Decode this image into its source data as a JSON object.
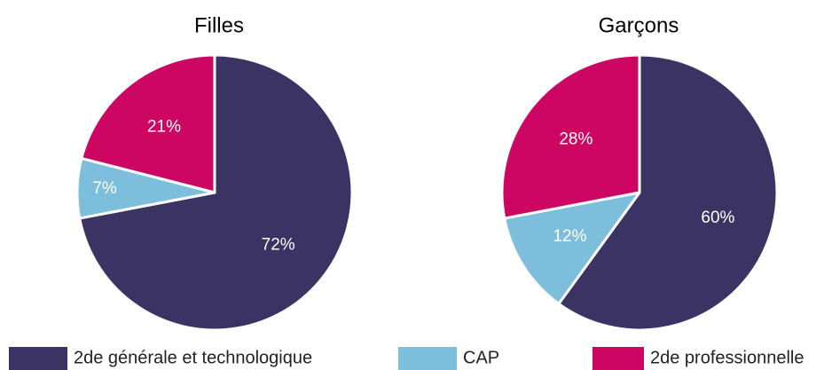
{
  "chart_data": [
    {
      "type": "pie",
      "title": "Filles",
      "categories": [
        "2de générale et technologique",
        "CAP",
        "2de professionnelle"
      ],
      "values": [
        72,
        7,
        21
      ],
      "value_labels": [
        "72%",
        "7%",
        "21%"
      ],
      "colors": [
        "#3b3363",
        "#7dbedc",
        "#cc0662"
      ]
    },
    {
      "type": "pie",
      "title": "Garçons",
      "categories": [
        "2de générale et technologique",
        "CAP",
        "2de professionnelle"
      ],
      "values": [
        60,
        12,
        28
      ],
      "value_labels": [
        "60%",
        "12%",
        "28%"
      ],
      "colors": [
        "#3b3363",
        "#7dbedc",
        "#cc0662"
      ]
    }
  ]
}
